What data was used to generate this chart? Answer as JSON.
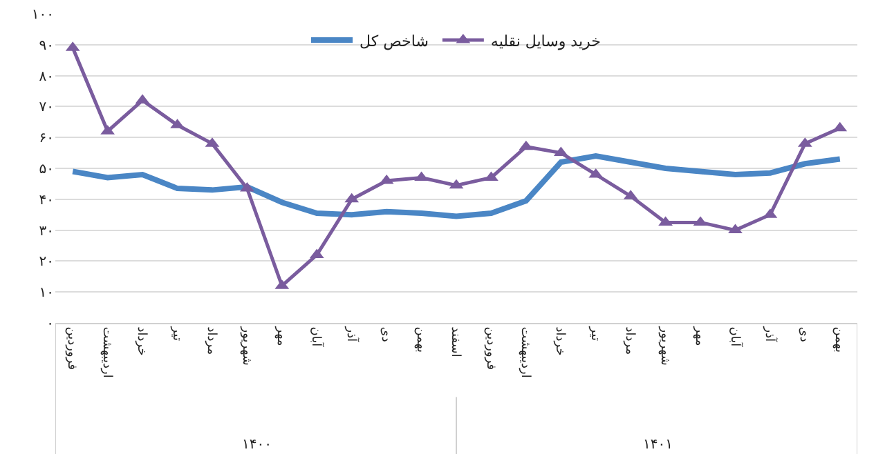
{
  "chart_data": {
    "type": "line",
    "categories": [
      "فروردین",
      "اردیبهشت",
      "خرداد",
      "تیر",
      "مرداد",
      "شهریور",
      "مهر",
      "آبان",
      "آذر",
      "دی",
      "بهمن",
      "اسفند",
      "فروردین",
      "اردیبهشت",
      "خرداد",
      "تیر",
      "مرداد",
      "شهریور",
      "مهر",
      "آبان",
      "آذر",
      "دی",
      "بهمن"
    ],
    "series": [
      {
        "name": "شاخص کل",
        "color": "#4a86c5",
        "marker": "none",
        "values": [
          49,
          47,
          48,
          43.5,
          43,
          44,
          39,
          35.5,
          35,
          36,
          35.5,
          34.5,
          35.5,
          39.5,
          52,
          54,
          52,
          50,
          49,
          48,
          48.5,
          51.5,
          53
        ]
      },
      {
        "name": "خرید وسایل نقلیه",
        "color": "#7a5c9e",
        "marker": "triangle",
        "values": [
          89,
          62,
          72,
          64,
          58,
          43.5,
          12,
          22,
          40,
          46,
          47,
          44.5,
          47,
          57,
          55,
          48,
          41,
          32.5,
          32.5,
          30,
          35,
          58,
          63
        ]
      }
    ],
    "ylim": [
      0,
      100
    ],
    "yticks": [
      {
        "value": 0,
        "label": "۰"
      },
      {
        "value": 10,
        "label": "۱۰"
      },
      {
        "value": 20,
        "label": "۲۰"
      },
      {
        "value": 30,
        "label": "۳۰"
      },
      {
        "value": 40,
        "label": "۴۰"
      },
      {
        "value": 50,
        "label": "۵۰"
      },
      {
        "value": 60,
        "label": "۶۰"
      },
      {
        "value": 70,
        "label": "۷۰"
      },
      {
        "value": 80,
        "label": "۸۰"
      },
      {
        "value": 90,
        "label": "۹۰"
      },
      {
        "value": 100,
        "label": "۱۰۰"
      }
    ],
    "grid": "y",
    "legend": "top",
    "annotations": [
      "۱۴۰۰",
      "۱۴۰۱"
    ]
  }
}
